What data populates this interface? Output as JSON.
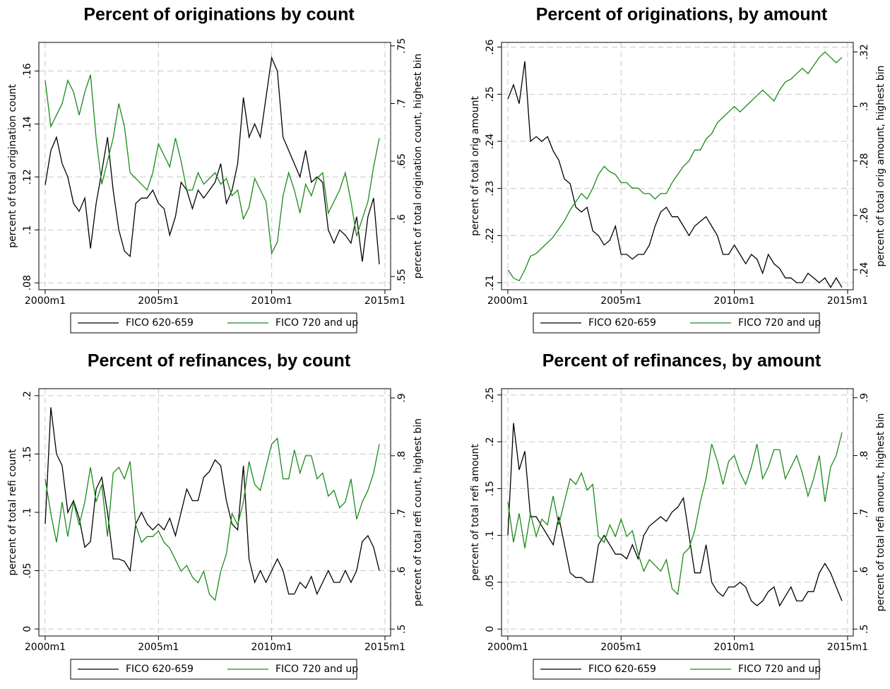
{
  "chart_data": [
    {
      "type": "line",
      "title": "Percent of originations by count",
      "ylabel": "percent of total origination count",
      "y2label": "percent of total origination count, highest bin",
      "x": [
        2000,
        2000.25,
        2000.5,
        2000.75,
        2001,
        2001.25,
        2001.5,
        2001.75,
        2002,
        2002.25,
        2002.5,
        2002.75,
        2003,
        2003.25,
        2003.5,
        2003.75,
        2004,
        2004.25,
        2004.5,
        2004.75,
        2005,
        2005.25,
        2005.5,
        2005.75,
        2006,
        2006.25,
        2006.5,
        2006.75,
        2007,
        2007.25,
        2007.5,
        2007.75,
        2008,
        2008.25,
        2008.5,
        2008.75,
        2009,
        2009.25,
        2009.5,
        2009.75,
        2010,
        2010.25,
        2010.5,
        2010.75,
        2011,
        2011.25,
        2011.5,
        2011.75,
        2012,
        2012.25,
        2012.5,
        2012.75,
        2013,
        2013.25,
        2013.5,
        2013.75,
        2014,
        2014.25,
        2014.5,
        2014.75
      ],
      "series": [
        {
          "name": "FICO 620-659",
          "color": "#000000",
          "values": [
            0.117,
            0.13,
            0.135,
            0.125,
            0.12,
            0.11,
            0.107,
            0.112,
            0.093,
            0.11,
            0.122,
            0.135,
            0.115,
            0.1,
            0.092,
            0.09,
            0.11,
            0.112,
            0.112,
            0.115,
            0.11,
            0.108,
            0.098,
            0.105,
            0.118,
            0.115,
            0.108,
            0.115,
            0.112,
            0.115,
            0.118,
            0.125,
            0.11,
            0.115,
            0.125,
            0.15,
            0.135,
            0.14,
            0.135,
            0.15,
            0.165,
            0.16,
            0.135,
            0.13,
            0.125,
            0.12,
            0.13,
            0.118,
            0.12,
            0.118,
            0.1,
            0.095,
            0.1,
            0.098,
            0.095,
            0.105,
            0.088,
            0.105,
            0.112,
            0.087
          ]
        },
        {
          "name": "FICO 720 and up",
          "color": "#1a8a1a",
          "axis": "y2",
          "values": [
            0.72,
            0.68,
            0.69,
            0.7,
            0.72,
            0.71,
            0.69,
            0.71,
            0.725,
            0.67,
            0.63,
            0.65,
            0.67,
            0.7,
            0.68,
            0.64,
            0.635,
            0.63,
            0.625,
            0.64,
            0.665,
            0.655,
            0.645,
            0.67,
            0.65,
            0.625,
            0.625,
            0.64,
            0.63,
            0.635,
            0.64,
            0.63,
            0.635,
            0.62,
            0.625,
            0.6,
            0.61,
            0.635,
            0.625,
            0.615,
            0.57,
            0.58,
            0.62,
            0.64,
            0.625,
            0.605,
            0.63,
            0.62,
            0.635,
            0.64,
            0.605,
            0.615,
            0.625,
            0.64,
            0.615,
            0.585,
            0.6,
            0.615,
            0.645,
            0.67
          ]
        }
      ],
      "xlim": [
        1999.72,
        2015.25
      ],
      "xticks": [
        {
          "value": 2000,
          "label": "2000m1"
        },
        {
          "value": 2005,
          "label": "2005m1"
        },
        {
          "value": 2010,
          "label": "2010m1"
        },
        {
          "value": 2015,
          "label": "2015m1"
        }
      ],
      "ylim": [
        0.0774,
        0.1708
      ],
      "yticks": [
        {
          "value": 0.08,
          "label": ".08"
        },
        {
          "value": 0.1,
          "label": ".1"
        },
        {
          "value": 0.12,
          "label": ".12"
        },
        {
          "value": 0.14,
          "label": ".14"
        },
        {
          "value": 0.16,
          "label": ".16"
        }
      ],
      "y2lim": [
        0.5385,
        0.753
      ],
      "y2ticks": [
        {
          "value": 0.55,
          "label": ".55"
        },
        {
          "value": 0.6,
          "label": ".6"
        },
        {
          "value": 0.65,
          "label": ".65"
        },
        {
          "value": 0.7,
          "label": ".7"
        },
        {
          "value": 0.75,
          "label": ".75"
        }
      ],
      "grid": true,
      "legend": "bottom"
    },
    {
      "type": "line",
      "title": "Percent of originations, by amount",
      "ylabel": "percent of total orig amount",
      "y2label": "percent of total orig amount, highest bin",
      "x": [
        2000,
        2000.25,
        2000.5,
        2000.75,
        2001,
        2001.25,
        2001.5,
        2001.75,
        2002,
        2002.25,
        2002.5,
        2002.75,
        2003,
        2003.25,
        2003.5,
        2003.75,
        2004,
        2004.25,
        2004.5,
        2004.75,
        2005,
        2005.25,
        2005.5,
        2005.75,
        2006,
        2006.25,
        2006.5,
        2006.75,
        2007,
        2007.25,
        2007.5,
        2007.75,
        2008,
        2008.25,
        2008.5,
        2008.75,
        2009,
        2009.25,
        2009.5,
        2009.75,
        2010,
        2010.25,
        2010.5,
        2010.75,
        2011,
        2011.25,
        2011.5,
        2011.75,
        2012,
        2012.25,
        2012.5,
        2012.75,
        2013,
        2013.25,
        2013.5,
        2013.75,
        2014,
        2014.25,
        2014.5,
        2014.75
      ],
      "series": [
        {
          "name": "FICO 620-659",
          "color": "#000000",
          "values": [
            0.249,
            0.252,
            0.248,
            0.257,
            0.24,
            0.241,
            0.24,
            0.241,
            0.238,
            0.236,
            0.232,
            0.231,
            0.226,
            0.225,
            0.226,
            0.221,
            0.22,
            0.218,
            0.219,
            0.222,
            0.216,
            0.216,
            0.215,
            0.216,
            0.216,
            0.218,
            0.222,
            0.225,
            0.226,
            0.224,
            0.224,
            0.222,
            0.22,
            0.222,
            0.223,
            0.224,
            0.222,
            0.22,
            0.216,
            0.216,
            0.218,
            0.216,
            0.214,
            0.216,
            0.215,
            0.212,
            0.216,
            0.214,
            0.213,
            0.211,
            0.211,
            0.21,
            0.21,
            0.212,
            0.211,
            0.21,
            0.211,
            0.209,
            0.211,
            0.209
          ]
        },
        {
          "name": "FICO 720 and up",
          "color": "#1a8a1a",
          "axis": "y2",
          "values": [
            0.24,
            0.237,
            0.236,
            0.24,
            0.245,
            0.246,
            0.248,
            0.25,
            0.252,
            0.255,
            0.258,
            0.262,
            0.265,
            0.268,
            0.266,
            0.27,
            0.275,
            0.278,
            0.276,
            0.275,
            0.272,
            0.272,
            0.27,
            0.27,
            0.268,
            0.268,
            0.266,
            0.268,
            0.268,
            0.272,
            0.275,
            0.278,
            0.28,
            0.284,
            0.284,
            0.288,
            0.29,
            0.294,
            0.296,
            0.298,
            0.3,
            0.298,
            0.3,
            0.302,
            0.304,
            0.306,
            0.304,
            0.302,
            0.306,
            0.309,
            0.31,
            0.312,
            0.314,
            0.312,
            0.315,
            0.318,
            0.32,
            0.318,
            0.316,
            0.318
          ]
        }
      ],
      "xlim": [
        1999.72,
        2015.25
      ],
      "xticks": [
        {
          "value": 2000,
          "label": "2000m1"
        },
        {
          "value": 2005,
          "label": "2005m1"
        },
        {
          "value": 2010,
          "label": "2010m1"
        },
        {
          "value": 2015,
          "label": "2015m1"
        }
      ],
      "ylim": [
        0.2085,
        0.261
      ],
      "yticks": [
        {
          "value": 0.21,
          "label": ".21"
        },
        {
          "value": 0.22,
          "label": ".22"
        },
        {
          "value": 0.23,
          "label": ".23"
        },
        {
          "value": 0.24,
          "label": ".24"
        },
        {
          "value": 0.25,
          "label": ".25"
        },
        {
          "value": 0.26,
          "label": ".26"
        }
      ],
      "y2lim": [
        0.2327,
        0.3235
      ],
      "y2ticks": [
        {
          "value": 0.24,
          "label": ".24"
        },
        {
          "value": 0.26,
          "label": ".26"
        },
        {
          "value": 0.28,
          "label": ".28"
        },
        {
          "value": 0.3,
          "label": ".3"
        },
        {
          "value": 0.32,
          "label": ".32"
        }
      ],
      "grid": true,
      "legend": "bottom"
    },
    {
      "type": "line",
      "title": "Percent of refinances, by count",
      "ylabel": "percent of total refi count",
      "y2label": "percent of total refi count, highest bin",
      "x": [
        2000,
        2000.25,
        2000.5,
        2000.75,
        2001,
        2001.25,
        2001.5,
        2001.75,
        2002,
        2002.25,
        2002.5,
        2002.75,
        2003,
        2003.25,
        2003.5,
        2003.75,
        2004,
        2004.25,
        2004.5,
        2004.75,
        2005,
        2005.25,
        2005.5,
        2005.75,
        2006,
        2006.25,
        2006.5,
        2006.75,
        2007,
        2007.25,
        2007.5,
        2007.75,
        2008,
        2008.25,
        2008.5,
        2008.75,
        2009,
        2009.25,
        2009.5,
        2009.75,
        2010,
        2010.25,
        2010.5,
        2010.75,
        2011,
        2011.25,
        2011.5,
        2011.75,
        2012,
        2012.25,
        2012.5,
        2012.75,
        2013,
        2013.25,
        2013.5,
        2013.75,
        2014,
        2014.25,
        2014.5,
        2014.75
      ],
      "series": [
        {
          "name": "FICO 620-659",
          "color": "#000000",
          "values": [
            0.09,
            0.19,
            0.15,
            0.14,
            0.1,
            0.11,
            0.095,
            0.07,
            0.075,
            0.12,
            0.13,
            0.1,
            0.06,
            0.06,
            0.058,
            0.05,
            0.09,
            0.1,
            0.09,
            0.085,
            0.09,
            0.085,
            0.095,
            0.08,
            0.1,
            0.12,
            0.11,
            0.11,
            0.13,
            0.135,
            0.145,
            0.14,
            0.11,
            0.09,
            0.085,
            0.14,
            0.06,
            0.04,
            0.05,
            0.04,
            0.05,
            0.06,
            0.05,
            0.03,
            0.03,
            0.04,
            0.035,
            0.045,
            0.03,
            0.04,
            0.05,
            0.04,
            0.04,
            0.05,
            0.04,
            0.05,
            0.075,
            0.08,
            0.07,
            0.05
          ]
        },
        {
          "name": "FICO 720 and up",
          "color": "#1a8a1a",
          "axis": "y2",
          "values": [
            0.76,
            0.7,
            0.65,
            0.72,
            0.66,
            0.72,
            0.68,
            0.72,
            0.78,
            0.72,
            0.75,
            0.66,
            0.77,
            0.78,
            0.76,
            0.79,
            0.68,
            0.65,
            0.66,
            0.66,
            0.67,
            0.65,
            0.64,
            0.62,
            0.6,
            0.61,
            0.59,
            0.58,
            0.6,
            0.56,
            0.55,
            0.6,
            0.63,
            0.7,
            0.68,
            0.72,
            0.79,
            0.75,
            0.74,
            0.78,
            0.82,
            0.83,
            0.76,
            0.76,
            0.81,
            0.77,
            0.8,
            0.8,
            0.76,
            0.77,
            0.73,
            0.74,
            0.71,
            0.72,
            0.76,
            0.69,
            0.72,
            0.74,
            0.77,
            0.82
          ]
        }
      ],
      "xlim": [
        1999.72,
        2015.25
      ],
      "xticks": [
        {
          "value": 2000,
          "label": "2000m1"
        },
        {
          "value": 2005,
          "label": "2005m1"
        },
        {
          "value": 2010,
          "label": "2010m1"
        },
        {
          "value": 2015,
          "label": "2015m1"
        }
      ],
      "ylim": [
        -0.006,
        0.206
      ],
      "yticks": [
        0,
        {
          "value": 0.05,
          "label": ".05"
        },
        {
          "value": 0.1,
          "label": ".1"
        },
        {
          "value": 0.15,
          "label": ".15"
        },
        {
          "value": 0.2,
          "label": ".2"
        }
      ],
      "y2lim": [
        0.488,
        0.916
      ],
      "y2ticks": [
        {
          "value": 0.5,
          "label": ".5"
        },
        {
          "value": 0.6,
          "label": ".6"
        },
        {
          "value": 0.7,
          "label": ".7"
        },
        {
          "value": 0.8,
          "label": ".8"
        },
        {
          "value": 0.9,
          "label": ".9"
        }
      ],
      "grid": true,
      "legend": "bottom"
    },
    {
      "type": "line",
      "title": "Percent of refinances, by amount",
      "ylabel": "percent of total refi amount",
      "y2label": "percent of total refi amount, highest bin",
      "x": [
        2000,
        2000.25,
        2000.5,
        2000.75,
        2001,
        2001.25,
        2001.5,
        2001.75,
        2002,
        2002.25,
        2002.5,
        2002.75,
        2003,
        2003.25,
        2003.5,
        2003.75,
        2004,
        2004.25,
        2004.5,
        2004.75,
        2005,
        2005.25,
        2005.5,
        2005.75,
        2006,
        2006.25,
        2006.5,
        2006.75,
        2007,
        2007.25,
        2007.5,
        2007.75,
        2008,
        2008.25,
        2008.5,
        2008.75,
        2009,
        2009.25,
        2009.5,
        2009.75,
        2010,
        2010.25,
        2010.5,
        2010.75,
        2011,
        2011.25,
        2011.5,
        2011.75,
        2012,
        2012.25,
        2012.5,
        2012.75,
        2013,
        2013.25,
        2013.5,
        2013.75,
        2014,
        2014.25,
        2014.5,
        2014.75
      ],
      "series": [
        {
          "name": "FICO 620-659",
          "color": "#000000",
          "values": [
            0.1,
            0.22,
            0.17,
            0.19,
            0.12,
            0.12,
            0.11,
            0.1,
            0.09,
            0.12,
            0.09,
            0.06,
            0.055,
            0.055,
            0.05,
            0.05,
            0.09,
            0.1,
            0.09,
            0.08,
            0.08,
            0.075,
            0.09,
            0.075,
            0.1,
            0.11,
            0.115,
            0.12,
            0.115,
            0.125,
            0.13,
            0.14,
            0.1,
            0.06,
            0.06,
            0.09,
            0.05,
            0.04,
            0.035,
            0.045,
            0.045,
            0.05,
            0.045,
            0.03,
            0.025,
            0.03,
            0.04,
            0.045,
            0.025,
            0.035,
            0.045,
            0.03,
            0.03,
            0.04,
            0.04,
            0.06,
            0.07,
            0.06,
            0.045,
            0.03
          ]
        },
        {
          "name": "FICO 720 and up",
          "color": "#1a8a1a",
          "axis": "y2",
          "values": [
            0.72,
            0.65,
            0.7,
            0.64,
            0.7,
            0.66,
            0.69,
            0.68,
            0.73,
            0.68,
            0.72,
            0.76,
            0.75,
            0.77,
            0.74,
            0.75,
            0.66,
            0.65,
            0.68,
            0.66,
            0.69,
            0.66,
            0.67,
            0.63,
            0.6,
            0.62,
            0.61,
            0.6,
            0.62,
            0.57,
            0.56,
            0.63,
            0.64,
            0.67,
            0.72,
            0.76,
            0.82,
            0.79,
            0.75,
            0.79,
            0.8,
            0.77,
            0.75,
            0.78,
            0.82,
            0.76,
            0.78,
            0.81,
            0.81,
            0.76,
            0.78,
            0.8,
            0.77,
            0.73,
            0.76,
            0.8,
            0.72,
            0.78,
            0.8,
            0.84
          ]
        }
      ],
      "xlim": [
        1999.72,
        2015.25
      ],
      "xticks": [
        {
          "value": 2000,
          "label": "2000m1"
        },
        {
          "value": 2005,
          "label": "2005m1"
        },
        {
          "value": 2010,
          "label": "2010m1"
        },
        {
          "value": 2015,
          "label": "2015m1"
        }
      ],
      "ylim": [
        -0.0074,
        0.2567
      ],
      "yticks": [
        0,
        {
          "value": 0.05,
          "label": ".05"
        },
        {
          "value": 0.1,
          "label": ".1"
        },
        {
          "value": 0.15,
          "label": ".15"
        },
        {
          "value": 0.2,
          "label": ".2"
        },
        {
          "value": 0.25,
          "label": ".25"
        }
      ],
      "y2lim": [
        0.488,
        0.9156
      ],
      "y2ticks": [
        {
          "value": 0.5,
          "label": ".5"
        },
        {
          "value": 0.6,
          "label": ".6"
        },
        {
          "value": 0.7,
          "label": ".7"
        },
        {
          "value": 0.8,
          "label": ".8"
        },
        {
          "value": 0.9,
          "label": ".9"
        }
      ],
      "grid": true,
      "legend": "bottom"
    }
  ]
}
